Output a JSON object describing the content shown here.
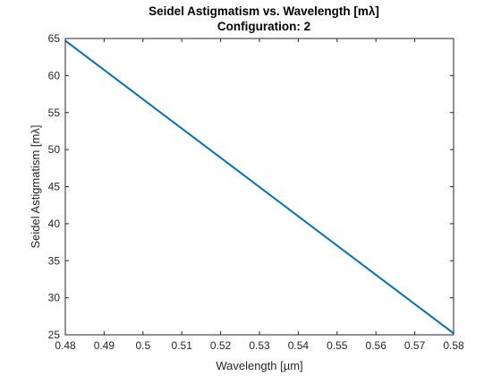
{
  "chart_data": {
    "type": "line",
    "title": "Seidel Astigmatism vs. Wavelength [mλ]",
    "subtitle": "Configuration: 2",
    "xlabel": "Wavelength [µm]",
    "ylabel": "Seidel Astigmatism [mλ]",
    "xlim": [
      0.48,
      0.58
    ],
    "ylim": [
      25,
      65
    ],
    "xticks": [
      "0.48",
      "0.49",
      "0.5",
      "0.51",
      "0.52",
      "0.53",
      "0.54",
      "0.55",
      "0.56",
      "0.57",
      "0.58"
    ],
    "yticks": [
      "25",
      "30",
      "35",
      "40",
      "45",
      "50",
      "55",
      "60",
      "65"
    ],
    "grid": false,
    "legend": false,
    "series": [
      {
        "color": "#0072bd",
        "x": [
          0.48,
          0.58
        ],
        "y": [
          64.7,
          25.2
        ]
      }
    ]
  }
}
